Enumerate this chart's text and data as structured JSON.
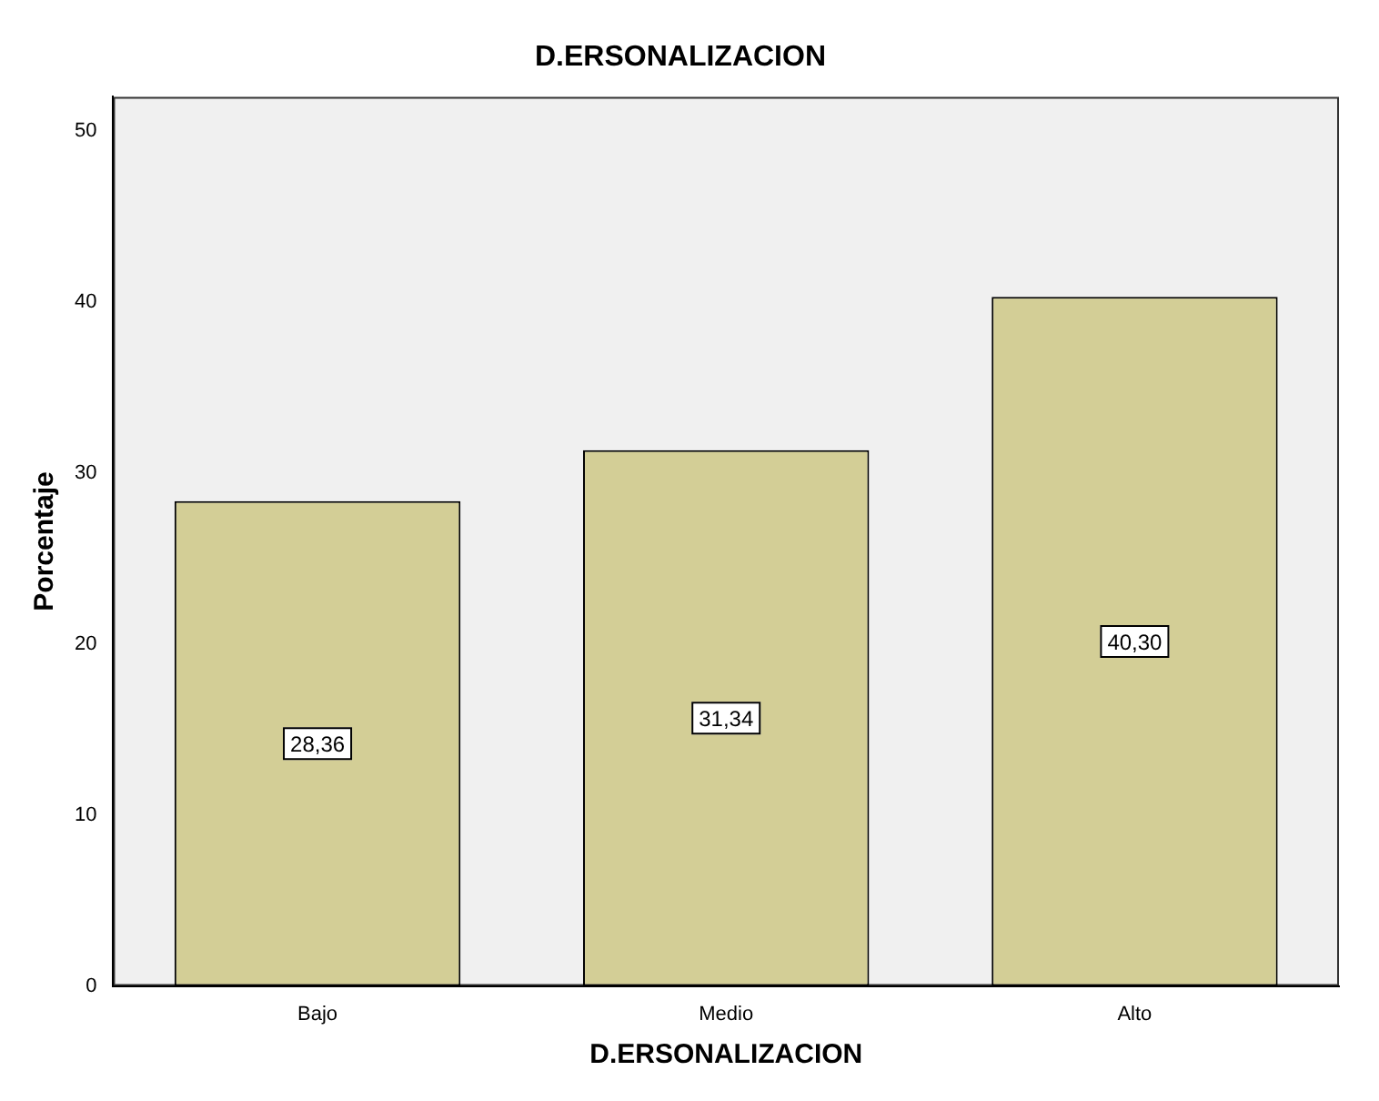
{
  "chart_data": {
    "type": "bar",
    "title": "D.ERSONALIZACION",
    "xlabel": "D.ERSONALIZACION",
    "ylabel": "Porcentaje",
    "categories": [
      "Bajo",
      "Medio",
      "Alto"
    ],
    "values": [
      28.36,
      31.34,
      40.3
    ],
    "value_labels": [
      "28,36",
      "31,34",
      "40,30"
    ],
    "color": "#d3ce96",
    "ylim": [
      0,
      52
    ],
    "yticks": [
      0,
      10,
      20,
      30,
      40,
      50
    ],
    "grid": false,
    "legend": false
  }
}
